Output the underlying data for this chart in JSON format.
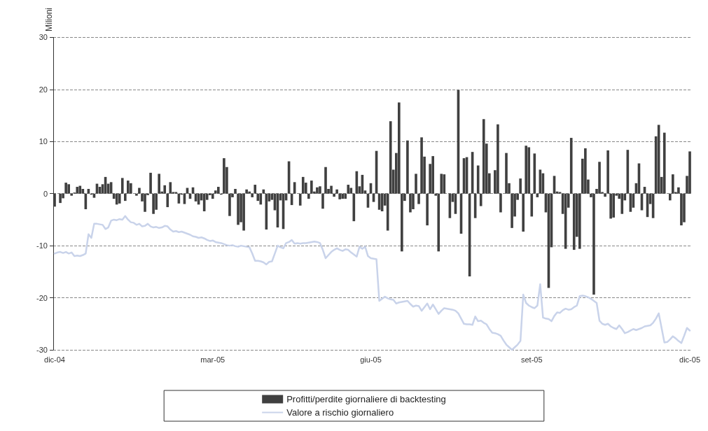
{
  "chart_data": {
    "type": "bar",
    "ylabel": "Milioni",
    "categories": [
      "dic-04",
      null,
      null,
      null,
      null,
      null,
      null,
      null,
      null,
      null,
      null,
      null,
      null,
      null,
      null,
      null,
      null,
      null,
      null,
      null,
      null,
      null,
      null,
      null,
      null,
      null,
      null,
      null,
      null,
      null,
      null,
      null,
      null,
      null,
      null,
      null,
      null,
      null,
      null,
      null,
      null,
      null,
      null,
      null,
      null,
      null,
      null,
      null,
      null,
      null,
      null,
      null,
      null,
      null,
      null,
      null,
      "mar-05",
      null,
      null,
      null,
      null,
      null,
      null,
      null,
      null,
      null,
      null,
      null,
      null,
      null,
      null,
      null,
      null,
      null,
      null,
      null,
      null,
      null,
      null,
      null,
      null,
      null,
      null,
      null,
      null,
      null,
      null,
      null,
      null,
      null,
      null,
      null,
      null,
      null,
      null,
      null,
      null,
      null,
      null,
      null,
      null,
      null,
      null,
      null,
      null,
      null,
      null,
      null,
      null,
      null,
      null,
      null,
      "giu-05",
      null,
      null,
      null,
      null,
      null,
      null,
      null,
      null,
      null,
      null,
      null,
      null,
      null,
      null,
      null,
      null,
      null,
      null,
      null,
      null,
      null,
      null,
      null,
      null,
      null,
      null,
      null,
      null,
      null,
      null,
      null,
      null,
      null,
      null,
      null,
      null,
      null,
      null,
      null,
      null,
      null,
      null,
      null,
      null,
      null,
      null,
      null,
      null,
      null,
      null,
      null,
      null,
      null,
      null,
      null,
      null,
      "set-05",
      null,
      null,
      null,
      null,
      null,
      null,
      null,
      null,
      null,
      null,
      null,
      null,
      null,
      null,
      null,
      null,
      null,
      null,
      null,
      null,
      null,
      null,
      null,
      null,
      null,
      null,
      null,
      null,
      null,
      null,
      null,
      null,
      null,
      null,
      null,
      null,
      null,
      null,
      null,
      null,
      null,
      null,
      null,
      null,
      null,
      null,
      null,
      null,
      null,
      null,
      null,
      null,
      null,
      null,
      null,
      "dic-05"
    ],
    "series": [
      {
        "name": "Profitti/perdite giornaliere di backtesting",
        "color": "#404040",
        "values": [
          -2.5,
          0,
          -1.8,
          -0.9,
          2.1,
          1.8,
          -0.4,
          0.2,
          1.3,
          1.5,
          0.9,
          -3.0,
          0.9,
          -0.2,
          -0.8,
          1.9,
          1.3,
          1.8,
          3.2,
          1.9,
          2.2,
          -1.0,
          -2.1,
          -1.9,
          3.0,
          -1.4,
          2.5,
          2.0,
          0,
          -0.4,
          1.1,
          -1.5,
          -3.5,
          -0.3,
          4.0,
          -3.9,
          -3.1,
          3.8,
          0.4,
          1.6,
          -2.6,
          2.2,
          0.3,
          0.3,
          -1.9,
          -0.2,
          -2.0,
          1.1,
          -1.0,
          1.2,
          -1.5,
          -2.1,
          -1.3,
          -3.4,
          -1.2,
          -0.3,
          -1.0,
          0.6,
          1.3,
          -0.2,
          6.8,
          5.1,
          -4.3,
          -0.7,
          0.9,
          -6.0,
          -5.5,
          -7.1,
          0.8,
          0.4,
          -0.7,
          1.7,
          -1.4,
          -2.1,
          0.8,
          -6.9,
          -1.5,
          -1.2,
          -3.2,
          -6.5,
          -1.3,
          -6.8,
          -1.3,
          6.2,
          -2.2,
          2.2,
          0,
          -2.3,
          3.2,
          2.1,
          -1.0,
          2.5,
          0.4,
          1.2,
          1.4,
          -2.9,
          5.1,
          0.9,
          1.5,
          -0.6,
          0.8,
          -1.1,
          -1.0,
          -1.0,
          1.7,
          1.1,
          -5.3,
          4.3,
          1.4,
          3.6,
          0.6,
          -2.7,
          2.0,
          -1.6,
          8.2,
          -3.1,
          -3.4,
          -2.3,
          -7.1,
          13.9,
          4.6,
          7.8,
          17.5,
          -11.1,
          -1.4,
          10.2,
          -3.6,
          -3.0,
          3.8,
          -2.0,
          10.8,
          7.1,
          -6.1,
          5.7,
          7.2,
          -0.4,
          -11.1,
          3.8,
          3.7,
          0,
          -4.7,
          -1.6,
          -3.9,
          19.9,
          -7.7,
          6.8,
          7.0,
          -15.9,
          8.0,
          -4.7,
          5.4,
          -2.4,
          14.3,
          9.6,
          3.9,
          0,
          4.5,
          13.3,
          -3.6,
          0,
          7.8,
          2.0,
          -6.6,
          -4.4,
          -1.2,
          2.9,
          -7.3,
          9.2,
          8.9,
          -4.4,
          7.7,
          -0.7,
          4.6,
          3.9,
          -3.6,
          -18.1,
          -10.3,
          3.4,
          0.4,
          0.3,
          -3.9,
          -10.6,
          -2.7,
          10.7,
          -10.8,
          -8.3,
          -10.6,
          6.7,
          8.7,
          2.7,
          -0.7,
          -19.4,
          0.9,
          6.1,
          0.3,
          -0.6,
          8.3,
          -4.8,
          -4.6,
          -0.4,
          -1.0,
          -3.9,
          -1.3,
          8.4,
          -3.5,
          -2.7,
          2.0,
          5.8,
          -3.2,
          1.3,
          -4.5,
          -2.0,
          -4.7,
          11.0,
          13.2,
          3.2,
          11.7,
          0,
          -1.3,
          3.7,
          0.3,
          1.2,
          -6.1,
          -5.5,
          3.4,
          8.1
        ]
      },
      {
        "name": "Valore a rischio giornaliero",
        "type": "line",
        "color": "#c9d3ea",
        "values": [
          -11.5,
          -11.3,
          -11.2,
          -11.4,
          -11.2,
          -11.5,
          -11.3,
          -12.0,
          -11.9,
          -12.0,
          -11.8,
          -11.5,
          -7.8,
          -8.5,
          -5.8,
          -5.8,
          -5.9,
          -6.0,
          -6.8,
          -6.5,
          -5.2,
          -5.0,
          -5.1,
          -4.9,
          -5.0,
          -4.3,
          -5.0,
          -5.5,
          -5.6,
          -6.0,
          -5.8,
          -6.3,
          -6.2,
          -5.8,
          -6.3,
          -6.5,
          -6.4,
          -6.6,
          -6.5,
          -6.2,
          -6.3,
          -6.9,
          -7.3,
          -7.2,
          -7.4,
          -7.3,
          -7.5,
          -7.7,
          -7.9,
          -8.2,
          -8.3,
          -8.5,
          -8.4,
          -8.6,
          -8.9,
          -9.1,
          -9.0,
          -9.3,
          -9.4,
          -9.5,
          -9.7,
          -9.9,
          -10.0,
          -9.9,
          -10.1,
          -10.2,
          -10.0,
          -10.1,
          -10.2,
          -10.3,
          -11.5,
          -12.9,
          -12.9,
          -13.0,
          -13.2,
          -13.6,
          -13.1,
          -13.0,
          -11.5,
          -10.0,
          -10.3,
          -10.5,
          -9.5,
          -9.3,
          -8.9,
          -9.6,
          -9.5,
          -9.6,
          -9.5,
          -9.5,
          -9.4,
          -9.3,
          -9.2,
          -9.3,
          -9.5,
          -10.8,
          -12.4,
          -11.8,
          -11.2,
          -10.8,
          -10.5,
          -10.8,
          -11.0,
          -10.7,
          -10.8,
          -11.3,
          -11.7,
          -12.1,
          -10.2,
          -10.6,
          -10.2,
          -12.0,
          -12.4,
          -12.5,
          -12.6,
          -20.6,
          -20.2,
          -19.8,
          -20.1,
          -20.3,
          -20.4,
          -21.1,
          -20.9,
          -20.8,
          -20.7,
          -20.6,
          -21.2,
          -21.7,
          -21.5,
          -21.6,
          -22.5,
          -21.8,
          -21.1,
          -22.2,
          -21.3,
          -22.2,
          -23.1,
          -22.5,
          -22.0,
          -22.1,
          -22.2,
          -22.3,
          -22.5,
          -23.0,
          -24.0,
          -25.0,
          -25.1,
          -25.1,
          -25.2,
          -23.6,
          -24.5,
          -24.4,
          -24.8,
          -25.1,
          -26.0,
          -26.7,
          -26.8,
          -27.0,
          -27.3,
          -28.2,
          -29.0,
          -29.5,
          -30.0,
          -29.5,
          -29.0,
          -28.3,
          -19.4,
          -21.0,
          -21.5,
          -21.8,
          -22.0,
          -21.5,
          -17.4,
          -23.8,
          -24.0,
          -24.1,
          -24.5,
          -23.5,
          -22.8,
          -22.9,
          -22.4,
          -22.1,
          -22.3,
          -22.2,
          -21.8,
          -21.5,
          -19.7,
          -19.6,
          -19.7,
          -19.9,
          -20.2,
          -20.6,
          -21.0,
          -24.4,
          -25.0,
          -25.2,
          -25.0,
          -25.5,
          -25.8,
          -26.0,
          -25.3,
          -26.0,
          -26.8,
          -26.6,
          -26.3,
          -26.0,
          -26.2,
          -26.0,
          -25.8,
          -25.5,
          -25.4,
          -25.3,
          -24.8,
          -24.0,
          -23.0,
          -25.8,
          -28.6,
          -28.5,
          -28.0,
          -27.4,
          -27.8,
          -28.3,
          -28.7,
          -27.3,
          -25.8,
          -26.3
        ]
      }
    ],
    "ylim": [
      -30,
      30
    ],
    "yticks": [
      -30,
      -20,
      -10,
      0,
      10,
      20,
      30
    ],
    "grid": "y",
    "legend": "bottom",
    "marker": "none",
    "line_style": "solid"
  }
}
